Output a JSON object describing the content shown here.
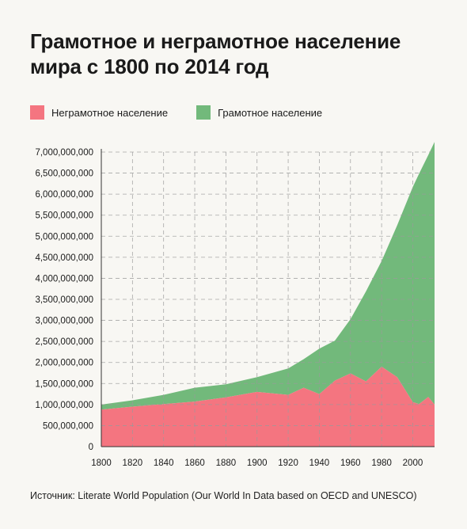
{
  "header": {
    "title_line1": "Грамотное и неграмотное население",
    "title_line2": "мира с 1800 по 2014 год"
  },
  "legend": [
    {
      "label": "Неграмотное население",
      "color": "#f47580"
    },
    {
      "label": "Грамотное население",
      "color": "#72b97b"
    }
  ],
  "source": "Источник: Literate World Population (Our World In Data based on OECD and UNESCO)",
  "chart_data": {
    "type": "area",
    "stacked": true,
    "xlim": [
      1800,
      2014
    ],
    "ylim": [
      0,
      7000000000
    ],
    "x_ticks": [
      1800,
      1820,
      1840,
      1860,
      1880,
      1900,
      1920,
      1940,
      1960,
      1980,
      2000
    ],
    "y_ticks": [
      0,
      500000000,
      1000000000,
      1500000000,
      2000000000,
      2500000000,
      3000000000,
      3500000000,
      4000000000,
      4500000000,
      5000000000,
      5500000000,
      6000000000,
      6500000000,
      7000000000
    ],
    "y_tick_labels": [
      "0",
      "500,000,000",
      "1,000,000,000",
      "1,500,000,000",
      "2,000,000,000",
      "2,500,000,000",
      "3,000,000,000",
      "3,500,000,000",
      "4,000,000,000",
      "4,500,000,000",
      "5,000,000,000",
      "5,500,000,000",
      "6,000,000,000",
      "6,500,000,000",
      "7,000,000,000"
    ],
    "grid": true,
    "legend_position": "top-left",
    "x": [
      1800,
      1820,
      1840,
      1860,
      1880,
      1900,
      1920,
      1930,
      1940,
      1950,
      1960,
      1970,
      1980,
      1990,
      2000,
      2004,
      2010,
      2014
    ],
    "series": [
      {
        "name": "Неграмотное население",
        "color": "#f47580",
        "values": [
          880000000,
          950000000,
          1010000000,
          1070000000,
          1170000000,
          1300000000,
          1230000000,
          1400000000,
          1250000000,
          1570000000,
          1740000000,
          1550000000,
          1900000000,
          1650000000,
          1060000000,
          1010000000,
          1180000000,
          1000000000
        ]
      },
      {
        "name": "Грамотное население",
        "color": "#72b97b",
        "values": [
          120000000,
          150000000,
          220000000,
          330000000,
          310000000,
          350000000,
          630000000,
          680000000,
          1080000000,
          950000000,
          1290000000,
          2140000000,
          2510000000,
          3610000000,
          5110000000,
          5470000000,
          5750000000,
          6240000000
        ]
      }
    ]
  }
}
